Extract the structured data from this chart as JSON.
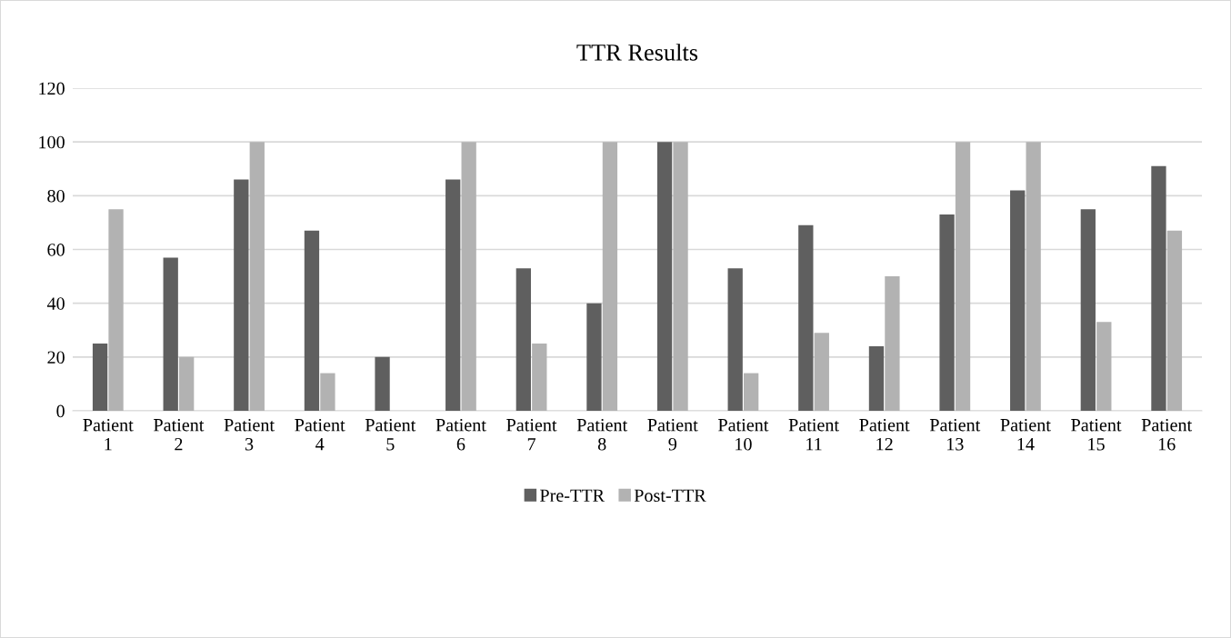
{
  "chart_data": {
    "type": "bar",
    "title": "TTR Results",
    "categories": [
      "Patient\n1",
      "Patient\n2",
      "Patient\n3",
      "Patient\n4",
      "Patient\n5",
      "Patient\n6",
      "Patient\n7",
      "Patient\n8",
      "Patient\n9",
      "Patient\n10",
      "Patient\n11",
      "Patient\n12",
      "Patient\n13",
      "Patient\n14",
      "Patient\n15",
      "Patient\n16"
    ],
    "series": [
      {
        "name": "Pre-TTR",
        "color": "#5f5f5f",
        "values": [
          25,
          57,
          86,
          67,
          20,
          86,
          53,
          40,
          100,
          53,
          69,
          24,
          73,
          82,
          75,
          91
        ]
      },
      {
        "name": "Post-TTR",
        "color": "#b2b2b2",
        "values": [
          75,
          20,
          100,
          14,
          0,
          100,
          25,
          100,
          100,
          14,
          29,
          50,
          100,
          100,
          33,
          67
        ]
      }
    ],
    "ylim": [
      0,
      120
    ],
    "yticks": [
      0,
      20,
      40,
      60,
      80,
      100,
      120
    ],
    "grid": "y",
    "legend": "bottom"
  }
}
